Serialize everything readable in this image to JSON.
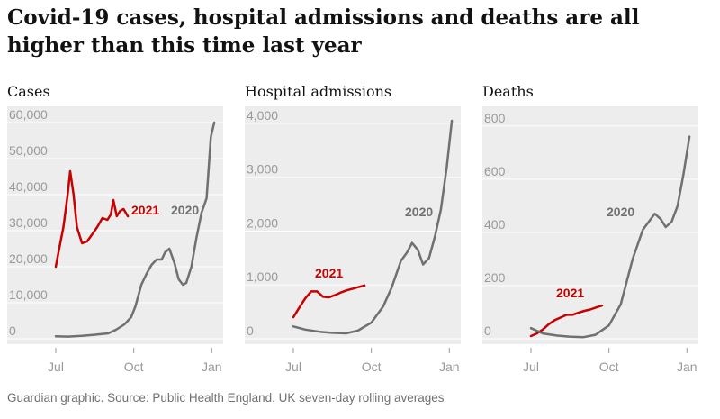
{
  "title": "Covid-19 cases, hospital admissions and deaths are all higher than this time last year",
  "source": "Guardian graphic. Source: Public Health England. UK seven-day rolling averages",
  "colors": {
    "y2021": "#c70000",
    "y2020": "#707070",
    "plot_bg": "#ededed",
    "grid": "#ffffff",
    "tick_text": "#999999"
  },
  "x_ticks": [
    "Jul",
    "Oct",
    "Jan"
  ],
  "chart_data": [
    {
      "type": "line",
      "title": "Cases",
      "ylim": [
        0,
        62000
      ],
      "yticks": [
        0,
        10000,
        20000,
        30000,
        40000,
        50000,
        60000
      ],
      "ytick_labels": [
        "0",
        "10,000",
        "20,000",
        "30,000",
        "40,000",
        "50,000",
        "60,000"
      ],
      "x_domain": [
        "Jul 1",
        "Jan 6"
      ],
      "series": [
        {
          "name": "2021",
          "x": [
            "Jul 1",
            "Jul 5",
            "Jul 10",
            "Jul 15",
            "Jul 18",
            "Jul 22",
            "Jul 26",
            "Aug 1",
            "Aug 7",
            "Aug 13",
            "Aug 19",
            "Aug 25",
            "Aug 31",
            "Sep 4",
            "Sep 7",
            "Sep 11",
            "Sep 15",
            "Sep 19",
            "Sep 24"
          ],
          "y": [
            20000,
            25000,
            31000,
            40000,
            46500,
            40000,
            31000,
            26500,
            27000,
            29000,
            31000,
            33500,
            33000,
            34500,
            38500,
            34000,
            35500,
            36000,
            34000
          ]
        },
        {
          "name": "2020",
          "x": [
            "Jul 1",
            "Jul 15",
            "Aug 1",
            "Aug 15",
            "Sep 1",
            "Sep 10",
            "Sep 20",
            "Sep 28",
            "Oct 3",
            "Oct 10",
            "Oct 16",
            "Oct 22",
            "Oct 28",
            "Nov 3",
            "Nov 7",
            "Nov 12",
            "Nov 18",
            "Nov 23",
            "Nov 28",
            "Dec 2",
            "Dec 8",
            "Dec 14",
            "Dec 20",
            "Dec 26",
            "Dec 31",
            "Jan 4"
          ],
          "y": [
            700,
            600,
            800,
            1100,
            1500,
            2500,
            4000,
            6000,
            9000,
            15000,
            18000,
            20500,
            22000,
            22000,
            24000,
            25000,
            21000,
            16500,
            15000,
            15500,
            20000,
            28000,
            35000,
            39000,
            56000,
            60000
          ]
        }
      ]
    },
    {
      "type": "line",
      "title": "Hospital admissions",
      "ylim": [
        0,
        4150
      ],
      "yticks": [
        0,
        1000,
        2000,
        3000,
        4000
      ],
      "ytick_labels": [
        "0",
        "1,000",
        "2,000",
        "3,000",
        "4,000"
      ],
      "x_domain": [
        "Jul 1",
        "Jan 6"
      ],
      "series": [
        {
          "name": "2021",
          "x": [
            "Jul 1",
            "Jul 8",
            "Jul 15",
            "Jul 22",
            "Jul 29",
            "Aug 5",
            "Aug 12",
            "Aug 19",
            "Aug 26",
            "Sep 2",
            "Sep 9",
            "Sep 16",
            "Sep 23"
          ],
          "y": [
            400,
            580,
            750,
            880,
            880,
            780,
            770,
            810,
            860,
            900,
            930,
            960,
            990
          ]
        },
        {
          "name": "2020",
          "x": [
            "Jul 1",
            "Jul 15",
            "Aug 1",
            "Aug 15",
            "Sep 1",
            "Sep 15",
            "Oct 1",
            "Oct 15",
            "Oct 25",
            "Nov 5",
            "Nov 12",
            "Nov 18",
            "Nov 25",
            "Dec 1",
            "Dec 8",
            "Dec 15",
            "Dec 22",
            "Dec 29",
            "Jan 4"
          ],
          "y": [
            230,
            170,
            130,
            110,
            100,
            150,
            300,
            600,
            950,
            1450,
            1600,
            1780,
            1650,
            1380,
            1500,
            1900,
            2400,
            3200,
            4050
          ]
        }
      ]
    },
    {
      "type": "line",
      "title": "Deaths",
      "ylim": [
        0,
        840
      ],
      "yticks": [
        0,
        200,
        400,
        600,
        800
      ],
      "ytick_labels": [
        "0",
        "200",
        "400",
        "600",
        "800"
      ],
      "x_domain": [
        "Jul 1",
        "Jan 6"
      ],
      "series": [
        {
          "name": "2021",
          "x": [
            "Jul 1",
            "Jul 8",
            "Jul 15",
            "Jul 22",
            "Jul 29",
            "Aug 5",
            "Aug 12",
            "Aug 19",
            "Aug 26",
            "Sep 2",
            "Sep 9",
            "Sep 16",
            "Sep 23"
          ],
          "y": [
            10,
            20,
            35,
            55,
            70,
            80,
            90,
            90,
            98,
            105,
            110,
            118,
            125
          ]
        },
        {
          "name": "2020",
          "x": [
            "Jul 1",
            "Jul 15",
            "Aug 1",
            "Aug 15",
            "Sep 1",
            "Sep 15",
            "Oct 1",
            "Oct 15",
            "Oct 29",
            "Nov 10",
            "Nov 17",
            "Nov 24",
            "Dec 1",
            "Dec 7",
            "Dec 14",
            "Dec 21",
            "Dec 28",
            "Jan 4"
          ],
          "y": [
            40,
            20,
            12,
            8,
            6,
            15,
            50,
            130,
            300,
            410,
            440,
            470,
            450,
            420,
            440,
            500,
            620,
            760
          ]
        }
      ]
    }
  ]
}
